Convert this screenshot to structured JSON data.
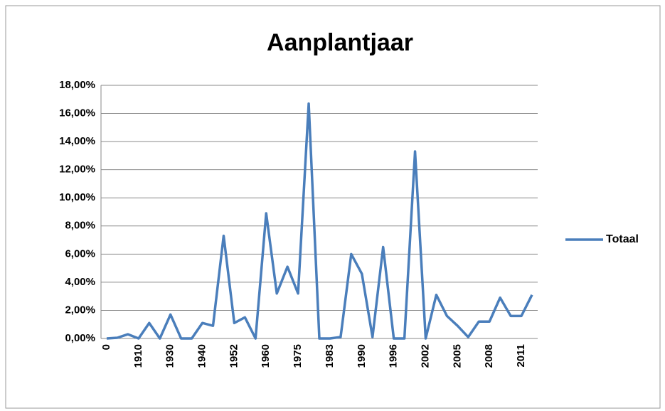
{
  "chart_data": {
    "type": "line",
    "title": "Aanplantjaar",
    "categories": [
      "0",
      null,
      null,
      "1910",
      null,
      null,
      "1930",
      null,
      null,
      "1940",
      null,
      null,
      "1952",
      null,
      null,
      "1960",
      null,
      null,
      "1975",
      null,
      null,
      "1983",
      null,
      null,
      "1990",
      null,
      null,
      "1996",
      null,
      null,
      "2002",
      null,
      null,
      "2005",
      null,
      null,
      "2008",
      null,
      null,
      "2011",
      null
    ],
    "series": [
      {
        "name": "Totaal",
        "color": "#4a7ebb",
        "values": [
          0,
          0.05,
          0.3,
          0,
          1.1,
          0,
          1.7,
          0,
          0,
          1.1,
          0.9,
          7.3,
          1.1,
          1.5,
          0,
          8.9,
          3.2,
          5.1,
          3.2,
          16.7,
          0,
          0,
          0.1,
          6.0,
          4.6,
          0.1,
          6.5,
          0,
          0,
          13.3,
          0,
          3.1,
          1.6,
          0.9,
          0.1,
          1.2,
          1.2,
          2.9,
          1.6,
          1.6,
          3.1
        ]
      }
    ],
    "ylim": [
      0,
      18
    ],
    "yticks": [
      {
        "value": 0,
        "label": "0,00%"
      },
      {
        "value": 2,
        "label": "2,00%"
      },
      {
        "value": 4,
        "label": "4,00%"
      },
      {
        "value": 6,
        "label": "6,00%"
      },
      {
        "value": 8,
        "label": "8,00%"
      },
      {
        "value": 10,
        "label": "10,00%"
      },
      {
        "value": 12,
        "label": "12,00%"
      },
      {
        "value": 14,
        "label": "14,00%"
      },
      {
        "value": 16,
        "label": "16,00%"
      },
      {
        "value": 18,
        "label": "18,00%"
      }
    ],
    "grid": true,
    "legend": "right"
  }
}
